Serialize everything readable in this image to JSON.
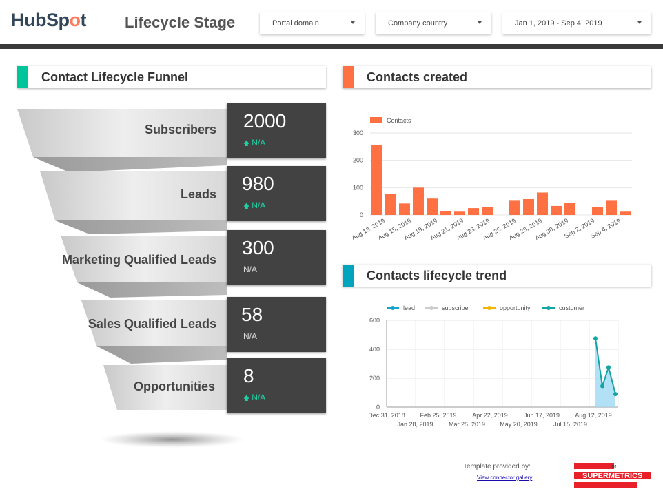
{
  "brand": {
    "logo_text_a": "HubSp",
    "logo_text_b": "o",
    "logo_text_c": "t"
  },
  "page": {
    "title": "Lifecycle Stage"
  },
  "filters": [
    {
      "label": "Portal domain"
    },
    {
      "label": "Company country"
    },
    {
      "label": "Jan 1, 2019 - Sep 4, 2019"
    }
  ],
  "colors": {
    "funnel_accent": "#00c49a",
    "created_accent": "#ff7043",
    "trend_accent": "#00a4bd",
    "bar": "#ff7043",
    "lead": "#1aa3c7",
    "subscriber": "#cccccc",
    "opportunity": "#f4b400",
    "customer": "#12a5a5"
  },
  "funnel": {
    "title": "Contact Lifecycle Funnel",
    "stages": [
      {
        "label": "Subscribers",
        "value": "2000",
        "delta": "N/A",
        "trend": "up"
      },
      {
        "label": "Leads",
        "value": "980",
        "delta": "N/A",
        "trend": "up"
      },
      {
        "label": "Marketing Qualified Leads",
        "value": "300",
        "delta": "N/A",
        "trend": "none"
      },
      {
        "label": "Sales Qualified Leads",
        "value": "58",
        "delta": "N/A",
        "trend": "none"
      },
      {
        "label": "Opportunities",
        "value": "8",
        "delta": "N/A",
        "trend": "up"
      }
    ]
  },
  "contacts_created": {
    "title": "Contacts created",
    "chart_data": {
      "type": "bar",
      "legend": "Contacts",
      "ylim": [
        0,
        300
      ],
      "yticks": [
        "0",
        "100",
        "200",
        "300"
      ],
      "values": [
        255,
        78,
        42,
        100,
        60,
        15,
        12,
        25,
        28,
        0,
        52,
        58,
        82,
        33,
        45,
        0,
        28,
        52,
        12
      ],
      "xticks": [
        "Aug 13, 2019",
        "Aug 15, 2019",
        "Aug 19, 2019",
        "Aug 21, 2019",
        "Aug 23, 2019",
        "Aug 26, 2019",
        "Aug 28, 2019",
        "Aug 30, 2019",
        "Sep 2, 2019",
        "Sep 4, 2019"
      ]
    }
  },
  "lifecycle_trend": {
    "title": "Contacts lifecycle trend",
    "chart_data": {
      "type": "line",
      "legend": [
        "lead",
        "subscriber",
        "opportunity",
        "customer"
      ],
      "ylim": [
        0,
        600
      ],
      "yticks": [
        "0",
        "200",
        "400",
        "600"
      ],
      "xticks_top": [
        "Dec 31, 2018",
        "Feb 25, 2019",
        "Apr 22, 2019",
        "Jun 17, 2019",
        "Aug 12, 2019"
      ],
      "xticks_bottom": [
        "Jan 28, 2019",
        "Mar 25, 2019",
        "May 20, 2019",
        "Jul 15, 2019"
      ],
      "series": [
        {
          "name": "lead",
          "values": [
            475,
            145,
            275,
            90
          ]
        }
      ]
    }
  },
  "footer": {
    "provided_by": "Template provided by:",
    "link": "View connector gallery",
    "partner": "SUPERMETRICS",
    "tm": "TM"
  }
}
